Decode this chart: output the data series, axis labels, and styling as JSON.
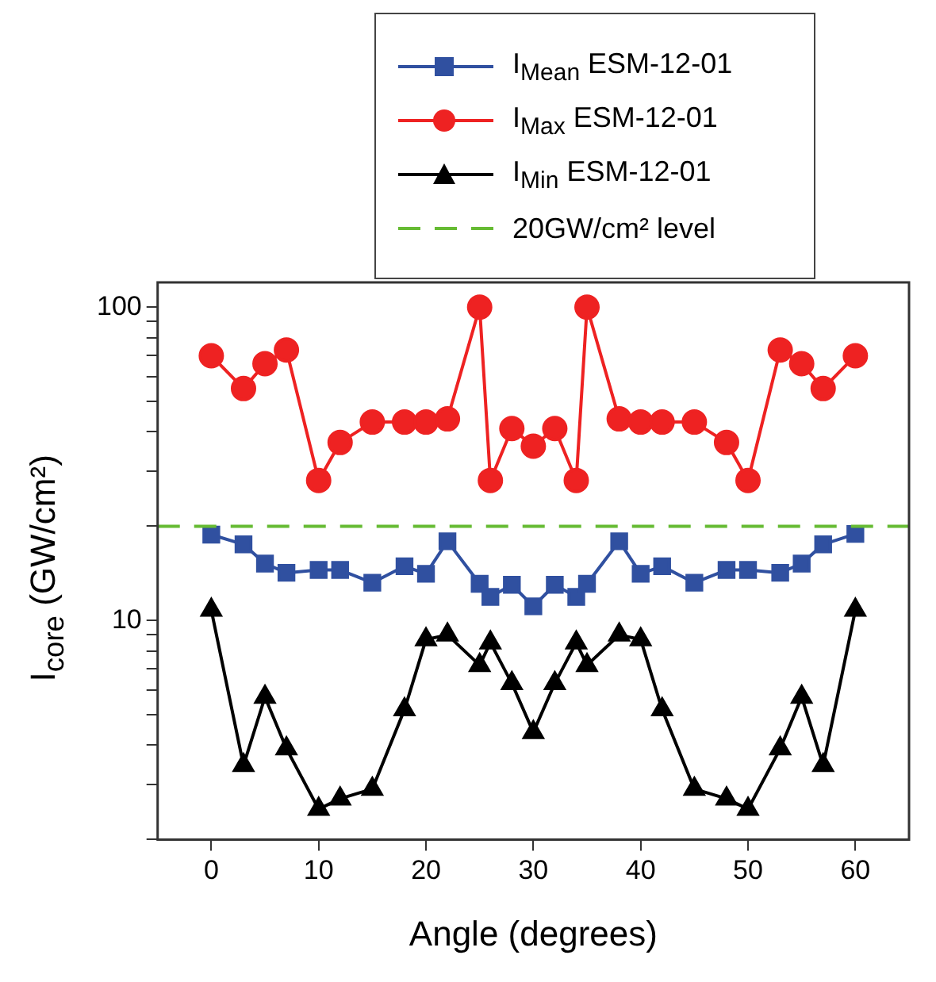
{
  "chart_data": {
    "type": "line",
    "xlabel": "Angle (degrees)",
    "ylabel": "I$_{core}$ (GW/cm²)",
    "log": "y",
    "grid": false,
    "legend": "top",
    "line_style": "solid",
    "x": [
      0,
      3,
      5,
      7,
      10,
      12,
      15,
      18,
      20,
      22,
      25,
      26,
      28,
      30,
      32,
      34,
      35,
      38,
      40,
      42,
      45,
      48,
      50,
      53,
      55,
      57,
      60
    ],
    "xlim": [
      -5,
      65
    ],
    "xticks": [
      0,
      10,
      20,
      30,
      40,
      50,
      60
    ],
    "ylim": [
      2,
      120
    ],
    "yticks": [
      {
        "value": 2,
        "label": null
      },
      {
        "value": 3,
        "label": null
      },
      {
        "value": 4,
        "label": null
      },
      {
        "value": 5,
        "label": null
      },
      {
        "value": 6,
        "label": null
      },
      {
        "value": 7,
        "label": null
      },
      {
        "value": 8,
        "label": null
      },
      {
        "value": 9,
        "label": null
      },
      10,
      {
        "value": 20,
        "label": null
      },
      {
        "value": 30,
        "label": null
      },
      {
        "value": 40,
        "label": null
      },
      {
        "value": 50,
        "label": null
      },
      {
        "value": 60,
        "label": null
      },
      {
        "value": 70,
        "label": null
      },
      {
        "value": 80,
        "label": null
      },
      {
        "value": 90,
        "label": null
      },
      100
    ],
    "series": [
      {
        "name": "I$_{Mean}$ ESM-12-01",
        "color": "#3050a0",
        "marker": "square",
        "values": [
          18.8,
          17.5,
          15.2,
          14.2,
          14.5,
          14.5,
          13.2,
          14.9,
          14.1,
          17.9,
          13.1,
          11.9,
          13.0,
          11.1,
          13.0,
          11.9,
          13.1,
          17.9,
          14.1,
          14.9,
          13.2,
          14.5,
          14.5,
          14.2,
          15.2,
          17.5,
          18.9
        ]
      },
      {
        "name": "I$_{Max}$ ESM-12-01",
        "color": "#ee2222",
        "marker": "circle",
        "values": [
          70,
          55,
          66,
          73,
          28,
          37,
          43,
          43,
          43,
          44,
          100,
          28,
          41,
          36,
          41,
          28,
          100,
          44,
          43,
          43,
          43,
          37,
          28,
          73,
          66,
          55,
          70
        ]
      },
      {
        "name": "I$_{Min}$ ESM-12-01",
        "color": "#000000",
        "marker": "triangle",
        "values": [
          10.8,
          3.45,
          5.7,
          3.9,
          2.5,
          2.7,
          2.9,
          5.2,
          8.7,
          9.0,
          7.2,
          8.5,
          6.3,
          4.4,
          6.3,
          8.5,
          7.2,
          9.0,
          8.7,
          5.2,
          2.9,
          2.7,
          2.5,
          3.9,
          5.7,
          3.45,
          10.8
        ]
      }
    ],
    "ref_lines": [
      {
        "axis": "y",
        "value": 20,
        "label": "20GW/cm² level",
        "color": "#66bb33",
        "line_style": "dashed"
      }
    ]
  }
}
